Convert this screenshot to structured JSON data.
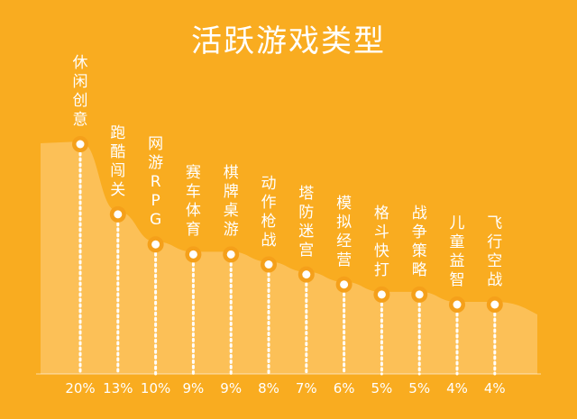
{
  "chart_data": {
    "type": "area",
    "title": "活跃游戏类型",
    "categories": [
      "休闲创意",
      "跑酷闯关",
      "网游RPG",
      "赛车体育",
      "棋牌桌游",
      "动作枪战",
      "塔防迷宫",
      "模拟经营",
      "格斗快打",
      "战争策略",
      "儿童益智",
      "飞行空战"
    ],
    "values": [
      20,
      13,
      10,
      9,
      9,
      8,
      7,
      6,
      5,
      5,
      4,
      4
    ],
    "value_labels": [
      "20%",
      "13%",
      "10%",
      "9%",
      "9%",
      "8%",
      "7%",
      "6%",
      "5%",
      "5%",
      "4%",
      "4%"
    ],
    "unit": "%",
    "colors": {
      "background": "#F9AC20",
      "area": "#FCC057",
      "marker_ring": "#F5A01A",
      "marker_fill": "#FFFFFF",
      "text": "#FFFFFF"
    }
  }
}
